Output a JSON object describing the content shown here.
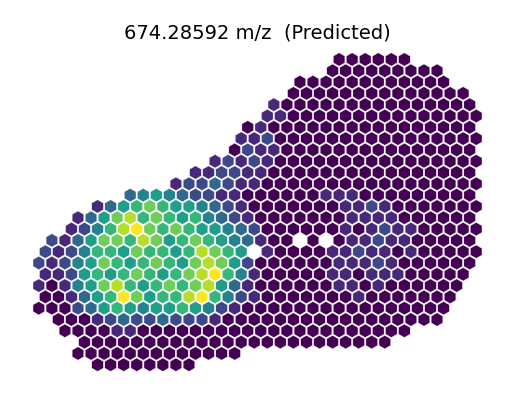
{
  "chart_data": {
    "type": "heatmap",
    "title": "674.28592 m/z  (Predicted)",
    "tick_labels": false,
    "cells": [
      [
        null,
        null,
        null,
        null,
        null,
        null,
        null,
        null,
        null,
        null,
        null,
        null,
        null,
        null,
        null,
        null,
        null,
        null,
        null,
        null,
        null,
        null,
        null,
        0,
        0,
        0,
        0,
        0,
        0,
        null,
        null,
        null,
        null,
        null
      ],
      [
        null,
        null,
        null,
        null,
        null,
        null,
        null,
        null,
        null,
        null,
        null,
        null,
        null,
        null,
        null,
        null,
        null,
        null,
        null,
        null,
        null,
        null,
        0,
        0,
        0,
        0,
        0,
        0,
        0,
        0,
        0,
        null,
        null,
        null
      ],
      [
        null,
        null,
        null,
        null,
        null,
        null,
        null,
        null,
        null,
        null,
        null,
        null,
        null,
        null,
        null,
        null,
        null,
        null,
        null,
        null,
        0,
        0,
        0,
        0,
        0,
        0,
        0,
        0,
        0,
        0,
        0,
        0,
        null,
        null
      ],
      [
        null,
        null,
        null,
        null,
        null,
        null,
        null,
        null,
        null,
        null,
        null,
        null,
        null,
        null,
        null,
        null,
        null,
        null,
        null,
        0,
        0,
        0,
        0,
        0,
        0,
        0,
        0,
        0,
        0,
        0,
        0,
        0,
        0,
        null
      ],
      [
        null,
        null,
        null,
        null,
        null,
        null,
        null,
        null,
        null,
        null,
        null,
        null,
        null,
        null,
        null,
        null,
        null,
        null,
        1,
        0,
        0,
        0,
        0,
        0,
        0,
        0,
        0,
        0,
        0,
        0,
        0,
        0,
        0,
        0
      ],
      [
        null,
        null,
        null,
        null,
        null,
        null,
        null,
        null,
        null,
        null,
        null,
        null,
        null,
        null,
        null,
        null,
        null,
        1,
        1,
        0,
        0,
        0,
        0,
        0,
        0,
        0,
        0,
        0,
        0,
        0,
        0,
        0,
        0,
        0
      ],
      [
        null,
        null,
        null,
        null,
        null,
        null,
        null,
        null,
        null,
        null,
        null,
        null,
        null,
        null,
        null,
        null,
        0,
        1,
        0,
        0,
        0,
        0,
        0,
        0,
        0,
        0,
        0,
        0,
        0,
        0,
        0,
        0,
        0,
        0
      ],
      [
        null,
        null,
        null,
        null,
        null,
        null,
        null,
        null,
        null,
        null,
        null,
        null,
        null,
        null,
        null,
        1,
        1,
        2,
        0,
        0,
        0,
        0,
        0,
        0,
        0,
        0,
        0,
        0,
        0,
        0,
        0,
        0,
        0,
        0
      ],
      [
        null,
        null,
        null,
        null,
        null,
        null,
        null,
        null,
        null,
        null,
        null,
        null,
        null,
        null,
        null,
        0,
        2,
        1,
        1,
        0,
        0,
        0,
        0,
        0,
        0,
        0,
        0,
        0,
        0,
        0,
        0,
        0,
        0,
        0
      ],
      [
        null,
        null,
        null,
        null,
        null,
        null,
        null,
        null,
        null,
        null,
        null,
        null,
        null,
        1,
        2,
        1,
        2,
        1,
        0,
        0,
        0,
        0,
        0,
        0,
        0,
        0,
        0,
        0,
        0,
        0,
        0,
        0,
        0,
        0
      ],
      [
        null,
        null,
        null,
        null,
        null,
        null,
        null,
        null,
        null,
        null,
        null,
        null,
        1,
        1,
        2,
        2,
        1,
        1,
        0,
        0,
        0,
        0,
        0,
        0,
        0,
        0,
        0,
        0,
        0,
        0,
        0,
        0,
        0,
        0
      ],
      [
        null,
        null,
        null,
        null,
        null,
        null,
        null,
        null,
        null,
        null,
        1,
        2,
        2,
        3,
        2,
        1,
        1,
        0,
        0,
        0,
        0,
        0,
        0,
        0,
        0,
        0,
        0,
        0,
        0,
        0,
        0,
        0,
        0,
        0
      ],
      [
        null,
        null,
        null,
        null,
        null,
        null,
        null,
        3,
        4,
        5,
        4,
        3,
        2,
        2,
        1,
        1,
        0,
        0,
        0,
        0,
        0,
        0,
        1,
        1,
        1,
        0,
        0,
        0,
        0,
        0,
        0,
        0,
        0,
        0
      ],
      [
        null,
        null,
        null,
        null,
        1,
        3,
        5,
        6,
        7,
        6,
        5,
        5,
        4,
        3,
        2,
        1,
        0,
        0,
        0,
        0,
        0,
        0,
        0,
        1,
        1,
        2,
        1,
        0,
        0,
        0,
        0,
        0,
        0,
        0
      ],
      [
        null,
        null,
        null,
        1,
        3,
        5,
        7,
        8,
        6,
        7,
        6,
        5,
        6,
        4,
        3,
        2,
        1,
        0,
        0,
        0,
        0,
        0,
        0,
        0,
        1,
        1,
        1,
        1,
        0,
        0,
        0,
        0,
        0,
        0
      ],
      [
        null,
        null,
        1,
        2,
        4,
        6,
        8,
        9,
        7,
        6,
        7,
        6,
        5,
        5,
        4,
        3,
        2,
        0,
        0,
        0,
        0,
        0,
        0,
        1,
        0,
        1,
        2,
        1,
        1,
        0,
        0,
        0,
        0,
        0
      ],
      [
        null,
        2,
        1,
        3,
        5,
        7,
        7,
        6,
        8,
        7,
        5,
        6,
        7,
        6,
        5,
        4,
        3,
        1,
        0,
        0,
        null,
        0,
        null,
        0,
        1,
        1,
        2,
        1,
        1,
        0,
        0,
        0,
        0,
        0
      ],
      [
        2,
        1,
        2,
        4,
        6,
        6,
        5,
        7,
        6,
        6,
        5,
        6,
        8,
        7,
        6,
        5,
        null,
        1,
        0,
        0,
        0,
        0,
        1,
        1,
        2,
        1,
        1,
        0,
        1,
        0,
        0,
        0,
        0,
        0
      ],
      [
        2,
        1,
        2,
        4,
        5,
        7,
        6,
        5,
        6,
        7,
        6,
        5,
        7,
        8,
        7,
        5,
        2,
        0,
        0,
        0,
        0,
        0,
        0,
        1,
        1,
        1,
        2,
        1,
        0,
        0,
        0,
        0,
        0,
        0
      ],
      [
        1,
        1,
        2,
        5,
        6,
        5,
        6,
        7,
        6,
        5,
        6,
        7,
        8,
        9,
        6,
        4,
        1,
        0,
        0,
        0,
        0,
        0,
        1,
        1,
        0,
        1,
        1,
        1,
        0,
        0,
        0,
        0,
        0,
        null
      ],
      [
        1,
        0,
        1,
        4,
        5,
        7,
        8,
        6,
        5,
        6,
        7,
        6,
        7,
        8,
        5,
        3,
        1,
        0,
        0,
        0,
        0,
        0,
        0,
        1,
        1,
        0,
        1,
        0,
        0,
        0,
        0,
        0,
        0,
        null
      ],
      [
        0,
        0,
        1,
        3,
        5,
        6,
        9,
        7,
        5,
        6,
        6,
        8,
        9,
        6,
        4,
        2,
        1,
        0,
        0,
        0,
        0,
        0,
        0,
        0,
        1,
        0,
        0,
        0,
        0,
        0,
        0,
        0,
        null,
        null
      ],
      [
        0,
        0,
        0,
        2,
        3,
        5,
        6,
        5,
        4,
        5,
        5,
        6,
        5,
        4,
        2,
        1,
        0,
        0,
        0,
        0,
        0,
        0,
        0,
        0,
        0,
        0,
        0,
        0,
        0,
        0,
        0,
        0,
        null,
        null
      ],
      [
        null,
        0,
        0,
        0,
        1,
        2,
        3,
        2,
        2,
        3,
        2,
        2,
        2,
        1,
        0,
        0,
        0,
        0,
        0,
        0,
        0,
        0,
        0,
        0,
        0,
        0,
        0,
        0,
        0,
        0,
        0,
        null,
        null,
        null
      ],
      [
        null,
        null,
        0,
        0,
        0,
        0,
        1,
        1,
        0,
        0,
        0,
        0,
        0,
        0,
        0,
        0,
        0,
        0,
        0,
        0,
        0,
        0,
        0,
        0,
        0,
        0,
        0,
        0,
        0,
        null,
        null,
        null,
        null,
        null
      ],
      [
        null,
        null,
        null,
        0,
        0,
        0,
        0,
        0,
        0,
        0,
        0,
        0,
        0,
        0,
        0,
        0,
        0,
        0,
        0,
        0,
        0,
        0,
        0,
        0,
        0,
        0,
        0,
        null,
        null,
        null,
        null,
        null,
        null,
        null
      ],
      [
        null,
        null,
        null,
        0,
        0,
        0,
        0,
        0,
        0,
        0,
        0,
        0,
        0,
        0,
        0,
        0,
        null,
        null,
        null,
        null,
        null,
        null,
        null,
        null,
        null,
        null,
        null,
        null,
        null,
        null,
        null,
        null,
        null,
        null
      ],
      [
        null,
        null,
        null,
        null,
        0,
        0,
        0,
        0,
        0,
        0,
        0,
        0,
        null,
        null,
        null,
        null,
        null,
        null,
        null,
        null,
        null,
        null,
        null,
        null,
        null,
        null,
        null,
        null,
        null,
        null,
        null,
        null,
        null,
        null
      ]
    ]
  }
}
